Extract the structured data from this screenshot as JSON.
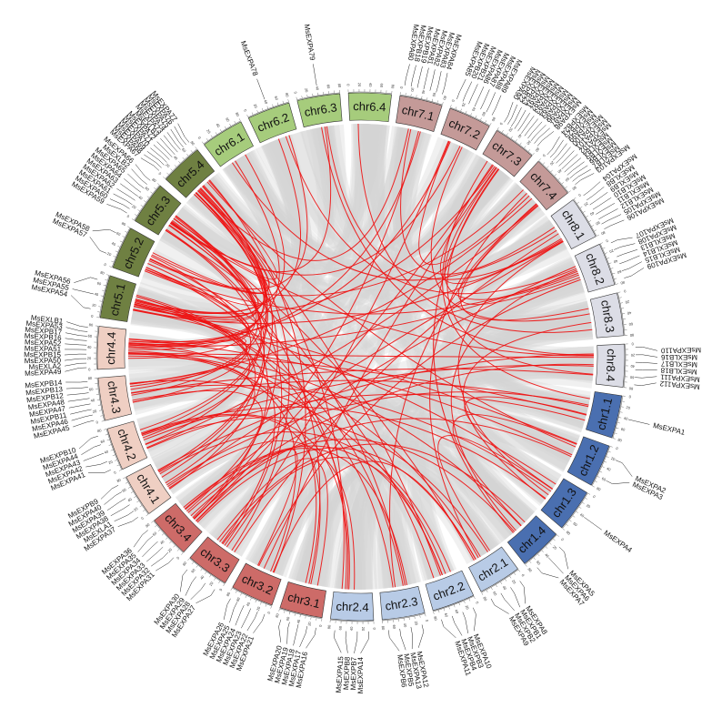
{
  "colors": {
    "chr1": "#4a6fb0",
    "chr2": "#b8cbe6",
    "chr3": "#cd6b68",
    "chr4": "#efcfc3",
    "chr5": "#6f8042",
    "chr6": "#a6cc7c",
    "chr7": "#c49a98",
    "chr8": "#dcdde6",
    "link_highlight": "#ee1111",
    "link_background": "#d4d4d4"
  },
  "chromosomes": [
    {
      "id": "chr1.1",
      "genes": [
        "MsEXPA1"
      ]
    },
    {
      "id": "chr1.2",
      "genes": [
        "MsEXPA2",
        "MsEXPA3"
      ]
    },
    {
      "id": "chr1.3",
      "genes": [
        "MsEXPA4"
      ]
    },
    {
      "id": "chr1.4",
      "genes": [
        "MsEXPA5",
        "MsEXPA6",
        "MsEXPA7"
      ]
    },
    {
      "id": "chr2.1",
      "genes": [
        "MsEXPA8",
        "MsEXPB1",
        "MsEXPB2",
        "MsEXPA9"
      ]
    },
    {
      "id": "chr2.2",
      "genes": [
        "MsEXPA10",
        "MsEXPB3",
        "MsEXPB4",
        "MsEXPA11"
      ]
    },
    {
      "id": "chr2.3",
      "genes": [
        "MsEXPA12",
        "MsEXPA13",
        "MsEXPB5",
        "MsEXPB6"
      ]
    },
    {
      "id": "chr2.4",
      "genes": [
        "MsEXPA14",
        "MsEXPB7",
        "MsEXPB8",
        "MsEXPA15"
      ]
    },
    {
      "id": "chr3.1",
      "genes": [
        "MsEXPA16",
        "MsEXPA17",
        "MsEXPA18",
        "MsEXPA19",
        "MsEXPA20"
      ]
    },
    {
      "id": "chr3.2",
      "genes": [
        "MsEXPA21",
        "MsEXPA22",
        "MsEXPA23",
        "MsEXPA24",
        "MsEXPA25",
        "MsEXPA26"
      ]
    },
    {
      "id": "chr3.3",
      "genes": [
        "MsEXPA27",
        "MsEXPA28",
        "MsEXPA29",
        "MsEXPA30"
      ]
    },
    {
      "id": "chr3.4",
      "genes": [
        "MsEXPA31",
        "MsEXPA32",
        "MsEXPA33",
        "MsEXPA34",
        "MsEXPA35",
        "MsEXPA36"
      ]
    },
    {
      "id": "chr4.1",
      "genes": [
        "MsEXPA37",
        "MsEXLA1",
        "MsEXPA38",
        "MsEXPA39",
        "MsEXPA40",
        "MsEXPB9"
      ]
    },
    {
      "id": "chr4.2",
      "genes": [
        "MsEXPA41",
        "MsEXPA42",
        "MsEXPA43",
        "MsEXPA44",
        "MsEXPB10"
      ]
    },
    {
      "id": "chr4.3",
      "genes": [
        "MsEXPA45",
        "MsEXPA46",
        "MsEXPB11",
        "MsEXPA47",
        "MsEXPA48",
        "MsEXPB12",
        "MsEXPB13",
        "MsEXPB14"
      ]
    },
    {
      "id": "chr4.4",
      "genes": [
        "MsEXPA49",
        "MsEXLA2",
        "MsEXPA50",
        "MsEXPB15",
        "MsEXPA51",
        "MsEXPA52",
        "MsEXPB16",
        "MsEXPB17",
        "MsEXPA53",
        "MsEXLB1"
      ]
    },
    {
      "id": "chr5.1",
      "genes": [
        "MsEXPA54",
        "MsEXPA55",
        "MsEXPA56"
      ]
    },
    {
      "id": "chr5.2",
      "genes": [
        "MsEXPA57",
        "MsEXPA58"
      ]
    },
    {
      "id": "chr5.3",
      "genes": [
        "MsEXPA59",
        "MsEXPA60",
        "MsEXPA61",
        "MsEXPA62",
        "MsEXPA63",
        "MsEXPA64",
        "MsEXPA65",
        "MsEXLB2",
        "MsEXPA66"
      ]
    },
    {
      "id": "chr5.4",
      "genes": [
        "MsEXPA67",
        "MsEXPA68",
        "MsEXPA69",
        "MsEXPA70",
        "MsEXPA71",
        "MsEXPA72",
        "MsEXLB3",
        "MsEXPA73",
        "MsEXPA74",
        "MsEXPA75",
        "MsEXPA76",
        "MsEXPA77"
      ]
    },
    {
      "id": "chr6.1",
      "genes": []
    },
    {
      "id": "chr6.2",
      "genes": [
        "MsEXPA78"
      ]
    },
    {
      "id": "chr6.3",
      "genes": [
        "MsEXPA79"
      ]
    },
    {
      "id": "chr6.4",
      "genes": []
    },
    {
      "id": "chr7.1",
      "genes": [
        "MsEXPA80",
        "MsEXPB18",
        "MsEXPB19",
        "MsEXPA81",
        "MsEXPA82",
        "MsEXPA83",
        "MsEXPA84"
      ]
    },
    {
      "id": "chr7.2",
      "genes": [
        "MsEXPA85",
        "MsEXPB20",
        "MsEXPB21",
        "MsEXPA86",
        "MsEXPA87",
        "MsEXPA88",
        "MsEXPA89"
      ]
    },
    {
      "id": "chr7.3",
      "genes": [
        "MsEXPA90",
        "MsEXPB22",
        "MsEXPB23",
        "MsEXPA91",
        "MsEXPA92",
        "MsEXPA93",
        "MsEXPA94",
        "MsEXPA95",
        "MsEXPA96",
        "MsEXPA97",
        "MsEXPA98"
      ]
    },
    {
      "id": "chr7.4",
      "genes": [
        "MsEXPB24",
        "MsEXPB25",
        "MsEXPA99",
        "MsEXPA100",
        "MsEXPA101",
        "MsEXPA102",
        "MsEXLB4",
        "MsEXLB5",
        "MsEXLB6",
        "MsEXLB7",
        "MsEXPA103"
      ]
    },
    {
      "id": "chr8.1",
      "genes": [
        "MsEXPA104",
        "MsEXLB8",
        "MsEXLB9",
        "MsEXLB10",
        "MsEXLB11",
        "MsEXLB12",
        "MsEXPA105",
        "MsEXPA106"
      ]
    },
    {
      "id": "chr8.2",
      "genes": [
        "MsEXPA107",
        "MsEXPA108",
        "MsEXLB13",
        "MsEXLB14",
        "MsEXLB15",
        "MsEXPA109"
      ]
    },
    {
      "id": "chr8.3",
      "genes": []
    },
    {
      "id": "chr8.4",
      "genes": [
        "MsEXPA110",
        "MsEXLB16",
        "MsEXLB17",
        "MsEXLB18",
        "MsEXPA111",
        "MsEXPA112"
      ]
    }
  ],
  "highlight_links": [
    [
      26,
      0
    ],
    [
      26,
      3
    ],
    [
      27,
      4
    ],
    [
      27,
      6
    ],
    [
      26,
      9
    ],
    [
      25,
      10
    ],
    [
      24,
      11
    ],
    [
      26,
      11
    ],
    [
      27,
      13
    ],
    [
      27,
      14
    ],
    [
      25,
      15
    ],
    [
      24,
      15
    ],
    [
      26,
      16
    ],
    [
      27,
      17
    ],
    [
      25,
      18
    ],
    [
      24,
      19
    ],
    [
      28,
      12
    ],
    [
      28,
      10
    ],
    [
      29,
      11
    ],
    [
      29,
      9
    ],
    [
      29,
      15
    ],
    [
      31,
      14
    ],
    [
      31,
      13
    ],
    [
      31,
      15
    ],
    [
      28,
      16
    ],
    [
      29,
      17
    ],
    [
      31,
      12
    ],
    [
      30,
      2
    ],
    [
      29,
      3
    ],
    [
      28,
      2
    ],
    [
      31,
      11
    ],
    [
      31,
      18
    ],
    [
      0,
      15
    ],
    [
      0,
      14
    ],
    [
      0,
      13
    ],
    [
      1,
      15
    ],
    [
      1,
      19
    ],
    [
      2,
      13
    ],
    [
      3,
      15
    ],
    [
      1,
      16
    ],
    [
      4,
      15
    ],
    [
      4,
      13
    ],
    [
      4,
      9
    ],
    [
      5,
      14
    ],
    [
      5,
      12
    ],
    [
      6,
      15
    ],
    [
      5,
      10
    ],
    [
      7,
      19
    ],
    [
      8,
      15
    ],
    [
      9,
      15
    ],
    [
      9,
      11
    ],
    [
      7,
      12
    ],
    [
      8,
      10
    ],
    [
      7,
      16
    ],
    [
      6,
      16
    ],
    [
      5,
      17
    ],
    [
      10,
      18
    ],
    [
      10,
      19
    ],
    [
      11,
      14
    ],
    [
      11,
      19
    ],
    [
      12,
      18
    ],
    [
      12,
      16
    ],
    [
      13,
      18
    ],
    [
      14,
      16
    ],
    [
      14,
      19
    ],
    [
      15,
      18
    ],
    [
      13,
      19
    ],
    [
      12,
      15
    ],
    [
      15,
      17
    ],
    [
      16,
      14
    ],
    [
      17,
      15
    ],
    [
      18,
      14
    ],
    [
      19,
      15
    ],
    [
      19,
      16
    ],
    [
      18,
      16
    ],
    [
      16,
      18
    ],
    [
      17,
      19
    ],
    [
      15,
      19
    ],
    [
      19,
      13
    ],
    [
      18,
      12
    ],
    [
      20,
      15
    ],
    [
      21,
      17
    ],
    [
      22,
      18
    ],
    [
      20,
      28
    ],
    [
      21,
      29
    ],
    [
      22,
      31
    ],
    [
      23,
      30
    ],
    [
      22,
      28
    ],
    [
      26,
      28
    ],
    [
      27,
      29
    ],
    [
      26,
      29
    ],
    [
      25,
      27
    ],
    [
      25,
      30
    ],
    [
      24,
      28
    ],
    [
      27,
      30
    ],
    [
      26,
      31
    ],
    [
      3,
      10
    ],
    [
      3,
      11
    ],
    [
      2,
      14
    ],
    [
      2,
      16
    ],
    [
      1,
      11
    ],
    [
      0,
      12
    ],
    [
      4,
      11
    ],
    [
      5,
      11
    ],
    [
      6,
      11
    ],
    [
      7,
      13
    ],
    [
      8,
      13
    ],
    [
      4,
      18
    ],
    [
      5,
      19
    ],
    [
      6,
      18
    ],
    [
      7,
      17
    ],
    [
      8,
      18
    ],
    [
      9,
      19
    ],
    [
      10,
      16
    ],
    [
      11,
      17
    ],
    [
      12,
      19
    ],
    [
      13,
      16
    ],
    [
      14,
      17
    ],
    [
      15,
      16
    ],
    [
      16,
      19
    ],
    [
      17,
      18
    ],
    [
      18,
      19
    ],
    [
      19,
      17
    ],
    [
      20,
      16
    ],
    [
      21,
      16
    ],
    [
      1,
      3
    ],
    [
      0,
      2
    ],
    [
      2,
      4
    ]
  ],
  "background_link_count": 240
}
